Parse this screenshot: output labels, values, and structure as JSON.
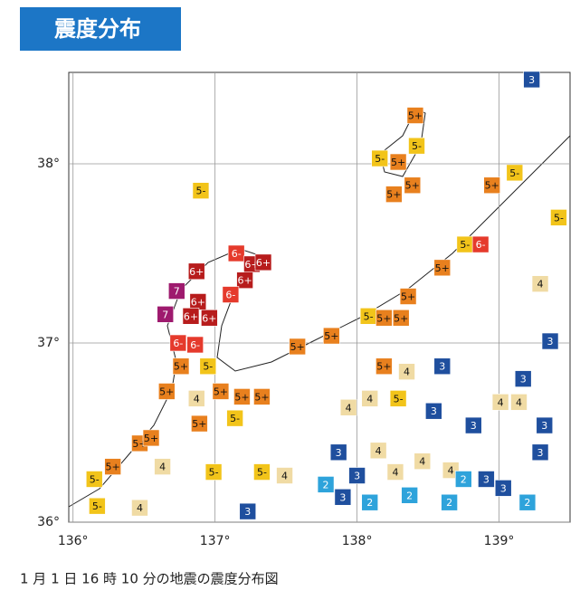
{
  "header": {
    "title": "震度分布"
  },
  "caption": "1 月 1 日 16 時 10 分の地震の震度分布図",
  "map": {
    "xlim": [
      135.97,
      139.5
    ],
    "ylim": [
      36.0,
      38.51
    ],
    "xticks": [
      {
        "value": 136,
        "label": "136°"
      },
      {
        "value": 137,
        "label": "137°"
      },
      {
        "value": 138,
        "label": "138°"
      },
      {
        "value": 139,
        "label": "139°"
      }
    ],
    "yticks": [
      {
        "value": 36,
        "label": "36°"
      },
      {
        "value": 37,
        "label": "37°"
      },
      {
        "value": 38,
        "label": "38°"
      }
    ],
    "grid": true,
    "intensity_colors": {
      "7": "#9e1a6e",
      "6+": "#b71c1c",
      "6-": "#e53a2c",
      "5+": "#e8801e",
      "5-": "#f2c41a",
      "4": "#f0dba4",
      "3": "#1f4f9e",
      "2": "#2ea3db"
    },
    "stations": [
      {
        "lon": 139.23,
        "lat": 38.47,
        "label": "3"
      },
      {
        "lon": 138.41,
        "lat": 38.27,
        "label": "5+"
      },
      {
        "lon": 138.42,
        "lat": 38.1,
        "label": "5-"
      },
      {
        "lon": 138.16,
        "lat": 38.03,
        "label": "5-"
      },
      {
        "lon": 138.29,
        "lat": 38.01,
        "label": "5+"
      },
      {
        "lon": 138.26,
        "lat": 37.83,
        "label": "5+"
      },
      {
        "lon": 138.39,
        "lat": 37.88,
        "label": "5+"
      },
      {
        "lon": 136.9,
        "lat": 37.85,
        "label": "5-"
      },
      {
        "lon": 137.15,
        "lat": 37.5,
        "label": "6-"
      },
      {
        "lon": 137.26,
        "lat": 37.44,
        "label": "6+"
      },
      {
        "lon": 137.34,
        "lat": 37.45,
        "label": "6+"
      },
      {
        "lon": 137.21,
        "lat": 37.35,
        "label": "6+"
      },
      {
        "lon": 136.87,
        "lat": 37.4,
        "label": "6+"
      },
      {
        "lon": 136.73,
        "lat": 37.29,
        "label": "7"
      },
      {
        "lon": 136.88,
        "lat": 37.23,
        "label": "6+"
      },
      {
        "lon": 137.11,
        "lat": 37.27,
        "label": "6-"
      },
      {
        "lon": 136.65,
        "lat": 37.16,
        "label": "7"
      },
      {
        "lon": 136.83,
        "lat": 37.15,
        "label": "6+"
      },
      {
        "lon": 136.96,
        "lat": 37.14,
        "label": "6+"
      },
      {
        "lon": 136.74,
        "lat": 37.0,
        "label": "6-"
      },
      {
        "lon": 136.86,
        "lat": 36.99,
        "label": "6-"
      },
      {
        "lon": 136.76,
        "lat": 36.87,
        "label": "5+"
      },
      {
        "lon": 136.95,
        "lat": 36.87,
        "label": "5-"
      },
      {
        "lon": 136.66,
        "lat": 36.73,
        "label": "5+"
      },
      {
        "lon": 136.87,
        "lat": 36.69,
        "label": "4"
      },
      {
        "lon": 137.04,
        "lat": 36.73,
        "label": "5+"
      },
      {
        "lon": 137.19,
        "lat": 36.7,
        "label": "5+"
      },
      {
        "lon": 137.33,
        "lat": 36.7,
        "label": "5+"
      },
      {
        "lon": 136.89,
        "lat": 36.55,
        "label": "5+"
      },
      {
        "lon": 137.14,
        "lat": 36.58,
        "label": "5-"
      },
      {
        "lon": 136.47,
        "lat": 36.44,
        "label": "5+"
      },
      {
        "lon": 136.55,
        "lat": 36.47,
        "label": "5+"
      },
      {
        "lon": 136.28,
        "lat": 36.31,
        "label": "5+"
      },
      {
        "lon": 136.15,
        "lat": 36.24,
        "label": "5-"
      },
      {
        "lon": 136.17,
        "lat": 36.09,
        "label": "5-"
      },
      {
        "lon": 136.47,
        "lat": 36.08,
        "label": "4"
      },
      {
        "lon": 136.63,
        "lat": 36.31,
        "label": "4"
      },
      {
        "lon": 136.99,
        "lat": 36.28,
        "label": "5-"
      },
      {
        "lon": 137.33,
        "lat": 36.28,
        "label": "5-"
      },
      {
        "lon": 137.49,
        "lat": 36.26,
        "label": "4"
      },
      {
        "lon": 137.23,
        "lat": 36.06,
        "label": "3"
      },
      {
        "lon": 137.58,
        "lat": 36.98,
        "label": "5+"
      },
      {
        "lon": 137.82,
        "lat": 37.04,
        "label": "5+"
      },
      {
        "lon": 138.08,
        "lat": 37.15,
        "label": "5-"
      },
      {
        "lon": 138.19,
        "lat": 37.14,
        "label": "5+"
      },
      {
        "lon": 138.31,
        "lat": 37.14,
        "label": "5+"
      },
      {
        "lon": 138.36,
        "lat": 37.26,
        "label": "5+"
      },
      {
        "lon": 138.6,
        "lat": 37.42,
        "label": "5+"
      },
      {
        "lon": 138.76,
        "lat": 37.55,
        "label": "5-"
      },
      {
        "lon": 138.87,
        "lat": 37.55,
        "label": "6-"
      },
      {
        "lon": 138.95,
        "lat": 37.88,
        "label": "5+"
      },
      {
        "lon": 139.11,
        "lat": 37.95,
        "label": "5-"
      },
      {
        "lon": 139.42,
        "lat": 37.7,
        "label": "5-"
      },
      {
        "lon": 139.29,
        "lat": 37.33,
        "label": "4"
      },
      {
        "lon": 139.36,
        "lat": 37.01,
        "label": "3"
      },
      {
        "lon": 138.6,
        "lat": 36.87,
        "label": "3"
      },
      {
        "lon": 138.19,
        "lat": 36.87,
        "label": "5+"
      },
      {
        "lon": 138.35,
        "lat": 36.84,
        "label": "4"
      },
      {
        "lon": 137.94,
        "lat": 36.64,
        "label": "4"
      },
      {
        "lon": 138.09,
        "lat": 36.69,
        "label": "4"
      },
      {
        "lon": 138.29,
        "lat": 36.69,
        "label": "5-"
      },
      {
        "lon": 138.54,
        "lat": 36.62,
        "label": "3"
      },
      {
        "lon": 139.01,
        "lat": 36.67,
        "label": "4"
      },
      {
        "lon": 139.14,
        "lat": 36.67,
        "label": "4"
      },
      {
        "lon": 139.17,
        "lat": 36.8,
        "label": "3"
      },
      {
        "lon": 138.82,
        "lat": 36.54,
        "label": "3"
      },
      {
        "lon": 138.15,
        "lat": 36.4,
        "label": "4"
      },
      {
        "lon": 138.27,
        "lat": 36.28,
        "label": "4"
      },
      {
        "lon": 138.46,
        "lat": 36.34,
        "label": "4"
      },
      {
        "lon": 138.66,
        "lat": 36.29,
        "label": "4"
      },
      {
        "lon": 137.87,
        "lat": 36.39,
        "label": "3"
      },
      {
        "lon": 138.0,
        "lat": 36.26,
        "label": "3"
      },
      {
        "lon": 137.78,
        "lat": 36.21,
        "label": "2"
      },
      {
        "lon": 137.9,
        "lat": 36.14,
        "label": "3"
      },
      {
        "lon": 138.75,
        "lat": 36.24,
        "label": "2"
      },
      {
        "lon": 138.91,
        "lat": 36.24,
        "label": "3"
      },
      {
        "lon": 139.03,
        "lat": 36.19,
        "label": "3"
      },
      {
        "lon": 139.29,
        "lat": 36.39,
        "label": "3"
      },
      {
        "lon": 139.32,
        "lat": 36.54,
        "label": "3"
      },
      {
        "lon": 139.2,
        "lat": 36.11,
        "label": "2"
      },
      {
        "lon": 138.65,
        "lat": 36.11,
        "label": "2"
      },
      {
        "lon": 138.37,
        "lat": 36.15,
        "label": "2"
      },
      {
        "lon": 138.09,
        "lat": 36.11,
        "label": "2"
      }
    ]
  }
}
